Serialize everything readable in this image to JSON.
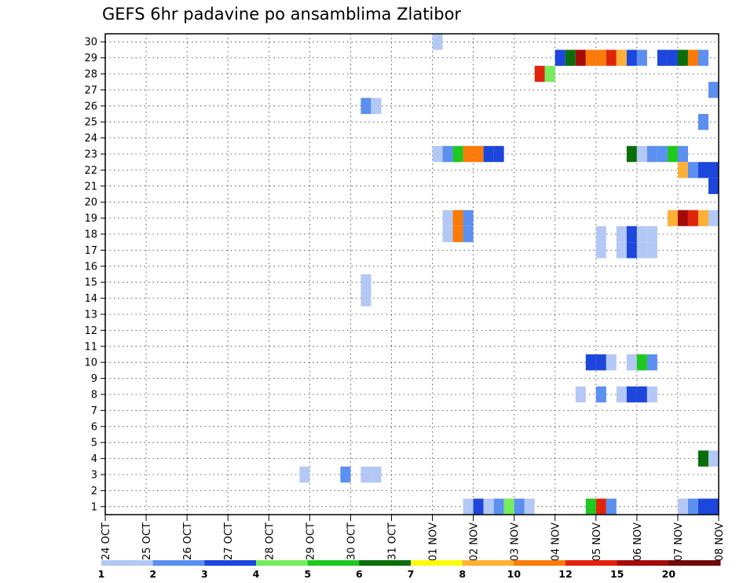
{
  "chart_data": {
    "type": "heatmap",
    "title": "GEFS 6hr padavine po ansamblima Zlatibor",
    "xlabel": "",
    "ylabel": "",
    "x_start": "24 OCT",
    "x_tick_labels": [
      "24 OCT",
      "25 OCT",
      "26 OCT",
      "27 OCT",
      "28 OCT",
      "29 OCT",
      "30 OCT",
      "31 OCT",
      "01 NOV",
      "02 NOV",
      "03 NOV",
      "04 NOV",
      "05 NOV",
      "06 NOV",
      "07 NOV",
      "08 NOV"
    ],
    "x_range": [
      "24 OCT 00",
      "08 NOV 00"
    ],
    "steps_per_day": 4,
    "y_tick_labels": [
      1,
      2,
      3,
      4,
      5,
      6,
      7,
      8,
      9,
      10,
      11,
      12,
      13,
      14,
      15,
      16,
      17,
      18,
      19,
      20,
      21,
      22,
      23,
      24,
      25,
      26,
      27,
      28,
      29,
      30
    ],
    "ylim": [
      0.5,
      30.5
    ],
    "grid": true,
    "legend": {
      "placement": "bottom",
      "thresholds": [
        "1",
        "2",
        "3",
        "4",
        "5",
        "6",
        "7",
        "8",
        "10",
        "12",
        "15",
        "20"
      ],
      "colors": [
        "#b3c8f5",
        "#5b8ff0",
        "#1c46dc",
        "#76ec5f",
        "#1ec81e",
        "#0a6e0a",
        "#fcfa0a",
        "#fcb035",
        "#fa7a0a",
        "#e0240c",
        "#a50a0a",
        "#6e0808"
      ]
    },
    "segments": [
      {
        "member": 30,
        "start": "01 NOV 00",
        "values": [
          1
        ]
      },
      {
        "member": 29,
        "start": "04 NOV 00",
        "values": [
          3,
          6,
          15,
          10,
          10,
          12,
          8,
          3,
          2,
          0,
          3,
          3,
          6,
          10,
          2
        ]
      },
      {
        "member": 28,
        "start": "03 NOV 12",
        "values": [
          12,
          4
        ]
      },
      {
        "member": 27,
        "start": "07 NOV 18",
        "values": [
          2
        ]
      },
      {
        "member": 26,
        "start": "30 OCT 06",
        "values": [
          2,
          1
        ]
      },
      {
        "member": 25,
        "start": "07 NOV 12",
        "values": [
          2
        ]
      },
      {
        "member": 23,
        "start": "01 NOV 00",
        "values": [
          1,
          2,
          5,
          10,
          10,
          3,
          3
        ]
      },
      {
        "member": 23,
        "start": "05 NOV 18",
        "values": [
          6,
          1,
          2,
          2,
          5,
          2
        ]
      },
      {
        "member": 22,
        "start": "07 NOV 00",
        "values": [
          8,
          2,
          3,
          3
        ]
      },
      {
        "member": 21,
        "start": "07 NOV 18",
        "values": [
          3
        ]
      },
      {
        "member": 19,
        "start": "01 NOV 06",
        "values": [
          1,
          10,
          2
        ]
      },
      {
        "member": 19,
        "start": "06 NOV 18",
        "values": [
          8,
          15,
          12,
          8,
          1
        ]
      },
      {
        "member": 18,
        "start": "01 NOV 06",
        "values": [
          1,
          10,
          2
        ]
      },
      {
        "member": 18,
        "start": "05 NOV 00",
        "values": [
          1,
          0,
          1,
          3,
          1,
          1
        ]
      },
      {
        "member": 17,
        "start": "05 NOV 00",
        "values": [
          1,
          0,
          1,
          3,
          1,
          1
        ]
      },
      {
        "member": 15,
        "start": "30 OCT 06",
        "values": [
          1
        ]
      },
      {
        "member": 14,
        "start": "30 OCT 06",
        "values": [
          1
        ]
      },
      {
        "member": 10,
        "start": "04 NOV 18",
        "values": [
          3,
          3,
          1,
          0,
          1,
          5,
          2
        ]
      },
      {
        "member": 8,
        "start": "04 NOV 12",
        "values": [
          1,
          0,
          2,
          0,
          1,
          3,
          3,
          1
        ]
      },
      {
        "member": 4,
        "start": "07 NOV 12",
        "values": [
          6,
          1
        ]
      },
      {
        "member": 3,
        "start": "28 OCT 18",
        "values": [
          1
        ]
      },
      {
        "member": 3,
        "start": "29 OCT 18",
        "values": [
          2,
          0,
          1,
          1
        ]
      },
      {
        "member": 1,
        "start": "01 NOV 18",
        "values": [
          1,
          3,
          1,
          2,
          4,
          2,
          1
        ]
      },
      {
        "member": 1,
        "start": "04 NOV 18",
        "values": [
          5,
          12,
          2
        ]
      },
      {
        "member": 1,
        "start": "07 NOV 00",
        "values": [
          1,
          2,
          3,
          3
        ]
      }
    ]
  }
}
